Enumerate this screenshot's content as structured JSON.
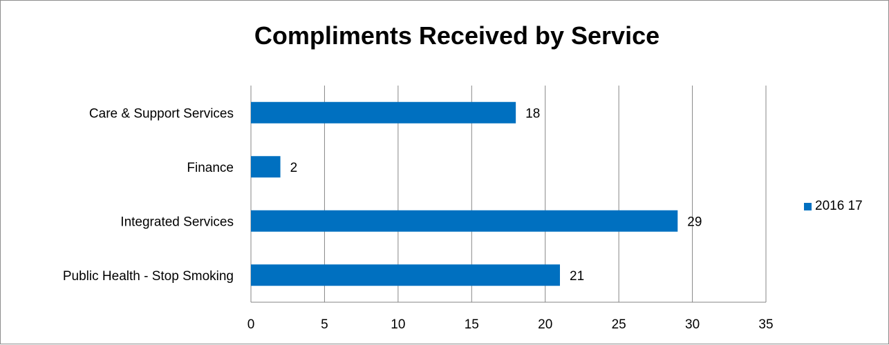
{
  "chart_data": {
    "type": "bar",
    "orientation": "horizontal",
    "title": "Compliments Received by Service",
    "categories": [
      "Care & Support Services",
      "Finance",
      "Integrated Services",
      "Public Health - Stop Smoking"
    ],
    "series": [
      {
        "name": "2016 17",
        "values": [
          18,
          2,
          29,
          21
        ],
        "color": "#0070c0"
      }
    ],
    "xlim": [
      0,
      35
    ],
    "xticks": [
      "0",
      "5",
      "10",
      "15",
      "20",
      "25",
      "30",
      "35"
    ],
    "grid": true,
    "legend": "right",
    "data_labels": true
  }
}
